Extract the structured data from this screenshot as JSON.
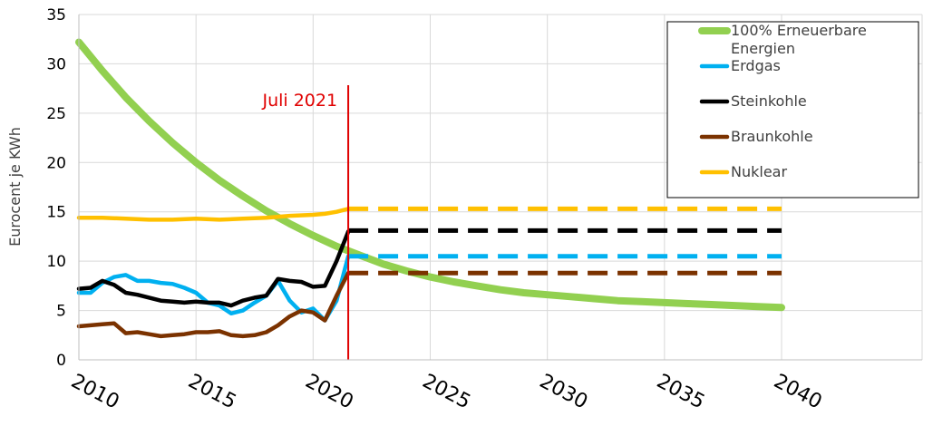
{
  "chart_data": {
    "type": "line",
    "title": "",
    "xlabel": "",
    "ylabel": "Eurocent je KWh",
    "xlim": [
      2010,
      2046
    ],
    "ylim": [
      0,
      35
    ],
    "x_ticks": [
      "2010",
      "2015",
      "2020",
      "2025",
      "2030",
      "2035",
      "2040"
    ],
    "y_ticks": [
      "0",
      "5",
      "10",
      "15",
      "20",
      "25",
      "30",
      "35"
    ],
    "grid": true,
    "legend_position": "top-right",
    "annotation": {
      "text": "Juli 2021",
      "x": 2021.5,
      "color": "#e00000"
    },
    "series": [
      {
        "name": "100% Erneuerbare Energien",
        "color": "#92d050",
        "style": "solid",
        "x": [
          2010,
          2011,
          2012,
          2013,
          2014,
          2015,
          2016,
          2017,
          2018,
          2019,
          2020,
          2021,
          2022,
          2023,
          2024,
          2025,
          2026,
          2027,
          2028,
          2029,
          2030,
          2031,
          2032,
          2033,
          2034,
          2035,
          2036,
          2037,
          2038,
          2039,
          2040
        ],
        "values": [
          32.2,
          29.3,
          26.6,
          24.2,
          22.0,
          20.0,
          18.2,
          16.6,
          15.1,
          13.8,
          12.6,
          11.5,
          10.6,
          9.7,
          9.0,
          8.4,
          7.9,
          7.5,
          7.1,
          6.8,
          6.6,
          6.4,
          6.2,
          6.0,
          5.9,
          5.8,
          5.7,
          5.6,
          5.5,
          5.4,
          5.3
        ]
      },
      {
        "name": "Erdgas",
        "color": "#00b0f0",
        "style": "solid",
        "x": [
          2010,
          2010.5,
          2011,
          2011.5,
          2012,
          2012.5,
          2013,
          2013.5,
          2014,
          2014.5,
          2015,
          2015.5,
          2016,
          2016.5,
          2017,
          2017.5,
          2018,
          2018.5,
          2019,
          2019.5,
          2020,
          2020.5,
          2021,
          2021.5
        ],
        "values": [
          6.8,
          6.8,
          7.8,
          8.4,
          8.6,
          8.0,
          8.0,
          7.8,
          7.7,
          7.3,
          6.8,
          5.8,
          5.5,
          4.7,
          5.0,
          5.8,
          6.5,
          8.0,
          6.0,
          4.8,
          5.2,
          4.0,
          6.0,
          10.5
        ]
      },
      {
        "name": "Steinkohle",
        "color": "#000000",
        "style": "solid",
        "x": [
          2010,
          2010.5,
          2011,
          2011.5,
          2012,
          2012.5,
          2013,
          2013.5,
          2014,
          2014.5,
          2015,
          2015.5,
          2016,
          2016.5,
          2017,
          2017.5,
          2018,
          2018.5,
          2019,
          2019.5,
          2020,
          2020.5,
          2021,
          2021.5
        ],
        "values": [
          7.2,
          7.3,
          8.0,
          7.6,
          6.8,
          6.6,
          6.3,
          6.0,
          5.9,
          5.8,
          5.9,
          5.8,
          5.8,
          5.5,
          6.0,
          6.3,
          6.5,
          8.2,
          8.0,
          7.9,
          7.4,
          7.5,
          10.0,
          13.0
        ]
      },
      {
        "name": "Braunkohle",
        "color": "#7b3200",
        "style": "solid",
        "x": [
          2010,
          2010.5,
          2011,
          2011.5,
          2012,
          2012.5,
          2013,
          2013.5,
          2014,
          2014.5,
          2015,
          2015.5,
          2016,
          2016.5,
          2017,
          2017.5,
          2018,
          2018.5,
          2019,
          2019.5,
          2020,
          2020.5,
          2021,
          2021.5
        ],
        "values": [
          3.4,
          3.5,
          3.6,
          3.7,
          2.7,
          2.8,
          2.6,
          2.4,
          2.5,
          2.6,
          2.8,
          2.8,
          2.9,
          2.5,
          2.4,
          2.5,
          2.8,
          3.5,
          4.4,
          5.0,
          4.8,
          4.0,
          6.5,
          8.8
        ]
      },
      {
        "name": "Nuklear",
        "color": "#ffc000",
        "style": "solid",
        "x": [
          2010,
          2011,
          2012,
          2013,
          2014,
          2015,
          2016,
          2017,
          2018,
          2019,
          2020,
          2020.5,
          2021,
          2021.5
        ],
        "values": [
          14.4,
          14.4,
          14.3,
          14.2,
          14.2,
          14.3,
          14.2,
          14.3,
          14.4,
          14.6,
          14.7,
          14.8,
          15.0,
          15.3
        ]
      },
      {
        "name": "",
        "color": "#ffc000",
        "style": "dashed",
        "x": [
          2021.5,
          2040
        ],
        "values": [
          15.3,
          15.3
        ]
      },
      {
        "name": "",
        "color": "#000000",
        "style": "dashed",
        "x": [
          2021.5,
          2040
        ],
        "values": [
          13.1,
          13.1
        ]
      },
      {
        "name": "",
        "color": "#00b0f0",
        "style": "dashed",
        "x": [
          2021.5,
          2040
        ],
        "values": [
          10.5,
          10.5
        ]
      },
      {
        "name": "",
        "color": "#7b3200",
        "style": "dashed",
        "x": [
          2021.5,
          2040
        ],
        "values": [
          8.8,
          8.8
        ]
      }
    ],
    "legend": [
      {
        "label_lines": [
          "100% Erneuerbare",
          "Energien"
        ],
        "color": "#92d050"
      },
      {
        "label_lines": [
          "Erdgas"
        ],
        "color": "#00b0f0"
      },
      {
        "label_lines": [
          "Steinkohle"
        ],
        "color": "#000000"
      },
      {
        "label_lines": [
          "Braunkohle"
        ],
        "color": "#7b3200"
      },
      {
        "label_lines": [
          "Nuklear"
        ],
        "color": "#ffc000"
      }
    ]
  }
}
